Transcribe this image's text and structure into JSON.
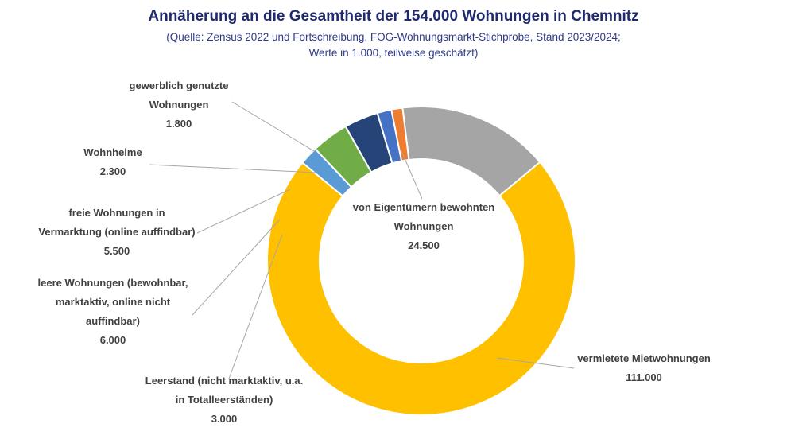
{
  "chart_data": {
    "type": "pie",
    "variant": "donut",
    "title": "Annäherung an die Gesamtheit der 154.000 Wohnungen in Chemnitz",
    "subtitle_lines": [
      "(Quelle: Zensus 2022 und Fortschreibung, FOG-Wohnungsmarkt-Stichprobe, Stand 2023/2024;",
      "Werte in 1.000, teilweise geschätzt)"
    ],
    "unit": "1.000",
    "total": 154000,
    "slices": [
      {
        "label_lines": [
          "von Eigentümern bewohnten",
          "Wohnungen"
        ],
        "value": 24500,
        "value_label": "24.500",
        "color": "#a5a5a5"
      },
      {
        "label_lines": [
          "vermietete Mietwohnungen"
        ],
        "value": 111000,
        "value_label": "111.000",
        "color": "#ffc000"
      },
      {
        "label_lines": [
          "Leerstand (nicht marktaktiv, u.a.",
          "in Totalleerständen)"
        ],
        "value": 3000,
        "value_label": "3.000",
        "color": "#5b9bd5"
      },
      {
        "label_lines": [
          "leere Wohnungen (bewohnbar,",
          "marktaktiv, online nicht",
          "auffindbar)"
        ],
        "value": 6000,
        "value_label": "6.000",
        "color": "#70ad47"
      },
      {
        "label_lines": [
          "freie Wohnungen in",
          "Vermarktung (online auffindbar)"
        ],
        "value": 5500,
        "value_label": "5.500",
        "color": "#264478"
      },
      {
        "label_lines": [
          "Wohnheime"
        ],
        "value": 2300,
        "value_label": "2.300",
        "color": "#4472c4"
      },
      {
        "label_lines": [
          "gewerblich genutzte",
          "Wohnungen"
        ],
        "value": 1800,
        "value_label": "1.800",
        "color": "#ed7d31"
      }
    ]
  }
}
